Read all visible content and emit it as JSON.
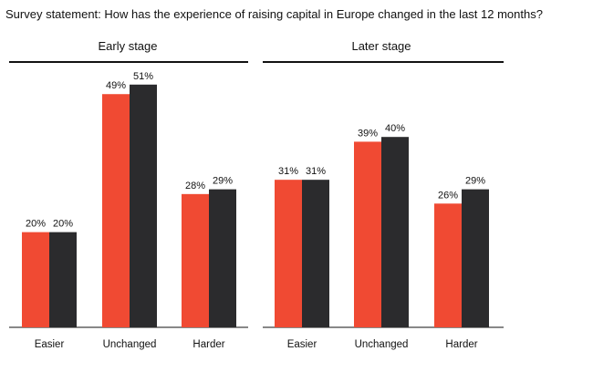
{
  "title": "Survey statement: How has the experience of raising capital in Europe changed in the last 12 months?",
  "colors": {
    "series_a": "#f04a33",
    "series_b": "#2b2b2d",
    "rule": "#111111"
  },
  "chart_data": [
    {
      "type": "bar",
      "title": "Early stage",
      "categories": [
        "Easier",
        "Unchanged",
        "Harder"
      ],
      "series": [
        {
          "values": [
            20,
            49,
            28
          ],
          "labels": [
            "20%",
            "49%",
            "28%"
          ]
        },
        {
          "values": [
            20,
            51,
            29
          ],
          "labels": [
            "20%",
            "51%",
            "29%"
          ]
        }
      ],
      "ylim": [
        0,
        60
      ]
    },
    {
      "type": "bar",
      "title": "Later stage",
      "categories": [
        "Easier",
        "Unchanged",
        "Harder"
      ],
      "series": [
        {
          "values": [
            31,
            39,
            26
          ],
          "labels": [
            "31%",
            "39%",
            "26%"
          ]
        },
        {
          "values": [
            31,
            40,
            29
          ],
          "labels": [
            "31%",
            "40%",
            "29%"
          ]
        }
      ],
      "ylim": [
        0,
        60
      ]
    }
  ]
}
